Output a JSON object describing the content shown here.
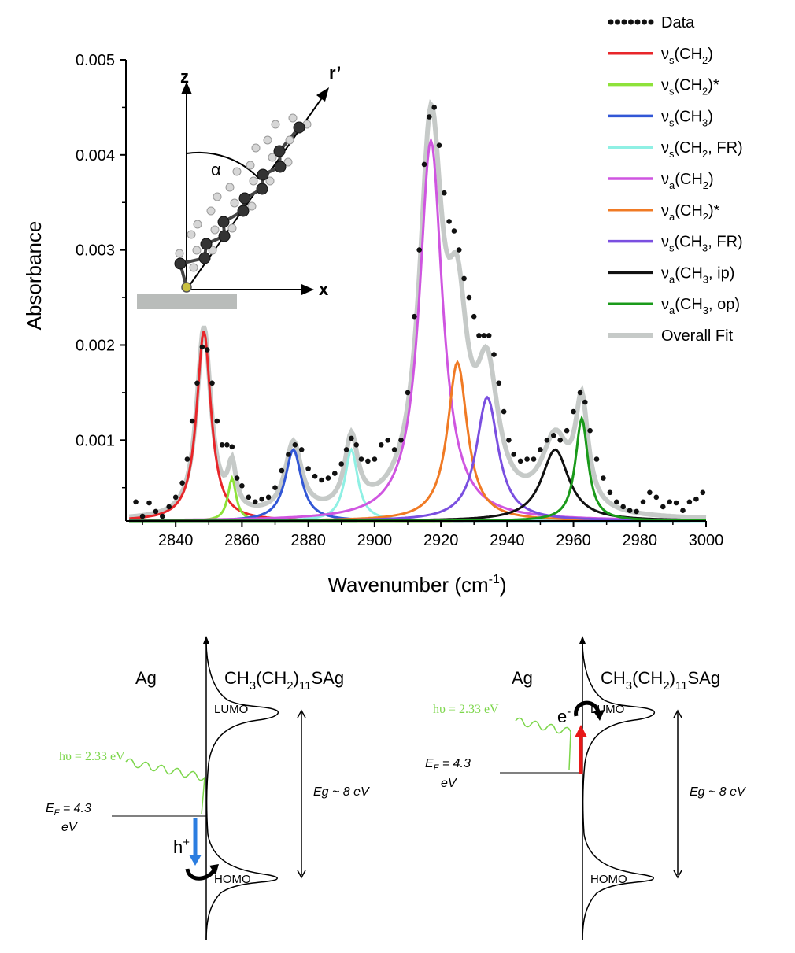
{
  "chart_data": {
    "type": "line",
    "xlabel": "Wavenumber (cm",
    "xlabel_sup": "-1",
    "xlabel_close": ")",
    "ylabel": "Absorbance",
    "xlim": [
      2825,
      3000
    ],
    "ylim": [
      0.00015,
      0.005
    ],
    "x_ticks": [
      2840,
      2860,
      2880,
      2900,
      2920,
      2940,
      2960,
      2980,
      3000
    ],
    "x_tick_labels": [
      "2840",
      "2860",
      "2880",
      "2900",
      "2920",
      "2940",
      "2960",
      "2980",
      "3000"
    ],
    "y_ticks": [
      0.001,
      0.002,
      0.003,
      0.004,
      0.005
    ],
    "y_tick_labels": [
      "0.001",
      "0.002",
      "0.003",
      "0.004",
      "0.005"
    ],
    "baseline": 0.00015,
    "legend_position": "top-right",
    "series": [
      {
        "name": "Data",
        "style": "dotted",
        "color": "#111111"
      },
      {
        "name": "νs(CH2)",
        "color": "#e8262a",
        "center": 2848.5,
        "height": 0.002,
        "hwhm": 2.6
      },
      {
        "name": "νs(CH2)*",
        "color": "#8ee23a",
        "center": 2857,
        "height": 0.00045,
        "hwhm": 1.5
      },
      {
        "name": "νs(CH3)",
        "color": "#3257d6",
        "center": 2875.5,
        "height": 0.00075,
        "hwhm": 3.0
      },
      {
        "name": "νs(CH2, FR)",
        "color": "#8ff0e4",
        "center": 2893,
        "height": 0.00075,
        "hwhm": 2.4
      },
      {
        "name": "νa(CH2)",
        "color": "#cf55e0",
        "center": 2917,
        "height": 0.004,
        "hwhm": 4.2
      },
      {
        "name": "νa(CH2)*",
        "color": "#f07a24",
        "center": 2925,
        "height": 0.00167,
        "hwhm": 3.6
      },
      {
        "name": "νs(CH3, FR)",
        "color": "#7a4fe0",
        "center": 2934,
        "height": 0.0013,
        "hwhm": 4.0
      },
      {
        "name": "νa(CH3, ip)",
        "color": "#111111",
        "center": 2954.5,
        "height": 0.00075,
        "hwhm": 5.0
      },
      {
        "name": "νa(CH3, op)",
        "color": "#1a9a1a",
        "center": 2962.5,
        "height": 0.00108,
        "hwhm": 2.3
      },
      {
        "name": "Overall Fit",
        "color": "#c6cac8"
      }
    ],
    "data_points": [
      [
        2828,
        0.00035
      ],
      [
        2830,
        0.0002
      ],
      [
        2832,
        0.00034
      ],
      [
        2834,
        0.00025
      ],
      [
        2836,
        0.0002
      ],
      [
        2838,
        0.0003
      ],
      [
        2840,
        0.0004
      ],
      [
        2842,
        0.00055
      ],
      [
        2843.5,
        0.0008
      ],
      [
        2845,
        0.0012
      ],
      [
        2846.5,
        0.0016
      ],
      [
        2848,
        0.00198
      ],
      [
        2849.5,
        0.00195
      ],
      [
        2851,
        0.0016
      ],
      [
        2852.5,
        0.0012
      ],
      [
        2854,
        0.00095
      ],
      [
        2855.5,
        0.00095
      ],
      [
        2857,
        0.00093
      ],
      [
        2858.5,
        0.0006
      ],
      [
        2860,
        0.00052
      ],
      [
        2862,
        0.0004
      ],
      [
        2864,
        0.00035
      ],
      [
        2866,
        0.00038
      ],
      [
        2868,
        0.0004
      ],
      [
        2870,
        0.0005
      ],
      [
        2872,
        0.00068
      ],
      [
        2874,
        0.00085
      ],
      [
        2876,
        0.00095
      ],
      [
        2878,
        0.0009
      ],
      [
        2880,
        0.0007
      ],
      [
        2882,
        0.00062
      ],
      [
        2884,
        0.00058
      ],
      [
        2886,
        0.0006
      ],
      [
        2888,
        0.00065
      ],
      [
        2890,
        0.00075
      ],
      [
        2891.5,
        0.0009
      ],
      [
        2893,
        0.00102
      ],
      [
        2894.5,
        0.00095
      ],
      [
        2896,
        0.0008
      ],
      [
        2898,
        0.00078
      ],
      [
        2900,
        0.0008
      ],
      [
        2902,
        0.00095
      ],
      [
        2904,
        0.001
      ],
      [
        2906,
        0.0009
      ],
      [
        2908,
        0.001
      ],
      [
        2910,
        0.0015
      ],
      [
        2912,
        0.0023
      ],
      [
        2913.5,
        0.003
      ],
      [
        2915,
        0.0039
      ],
      [
        2916.5,
        0.0044
      ],
      [
        2918,
        0.0045
      ],
      [
        2919.5,
        0.0041
      ],
      [
        2921,
        0.0036
      ],
      [
        2922.5,
        0.0033
      ],
      [
        2924,
        0.0032
      ],
      [
        2925.5,
        0.003
      ],
      [
        2927,
        0.0027
      ],
      [
        2928.5,
        0.0025
      ],
      [
        2930,
        0.0023
      ],
      [
        2931.5,
        0.0021
      ],
      [
        2933,
        0.0021
      ],
      [
        2934.5,
        0.0021
      ],
      [
        2936,
        0.0019
      ],
      [
        2937.5,
        0.0016
      ],
      [
        2939,
        0.0013
      ],
      [
        2940.5,
        0.001
      ],
      [
        2942,
        0.00085
      ],
      [
        2944,
        0.00078
      ],
      [
        2946,
        0.0008
      ],
      [
        2948,
        0.0008
      ],
      [
        2950,
        0.0009
      ],
      [
        2952,
        0.001
      ],
      [
        2954,
        0.00105
      ],
      [
        2956,
        0.001
      ],
      [
        2958,
        0.0011
      ],
      [
        2960,
        0.0013
      ],
      [
        2962,
        0.0015
      ],
      [
        2963.5,
        0.0014
      ],
      [
        2965,
        0.0011
      ],
      [
        2967,
        0.0008
      ],
      [
        2969,
        0.0006
      ],
      [
        2971,
        0.00045
      ],
      [
        2973,
        0.00035
      ],
      [
        2975,
        0.0003
      ],
      [
        2977,
        0.00026
      ],
      [
        2979,
        0.00025
      ],
      [
        2981,
        0.00035
      ],
      [
        2983,
        0.00045
      ],
      [
        2985,
        0.0004
      ],
      [
        2987,
        0.0003
      ],
      [
        2989,
        0.00035
      ],
      [
        2991,
        0.00034
      ],
      [
        2993,
        0.00026
      ],
      [
        2995,
        0.00035
      ],
      [
        2997,
        0.00038
      ],
      [
        2999,
        0.00045
      ]
    ]
  },
  "inset": {
    "z_label": "z",
    "x_label": "x",
    "r_label": "r’",
    "alpha_label": "α"
  },
  "diagrams": [
    {
      "metal": "Ag",
      "molecule_pre": "CH",
      "molecule_sub1": "3",
      "molecule_mid": "(CH",
      "molecule_sub2": "2",
      "molecule_mid2": ")",
      "molecule_sub3": "11",
      "molecule_post": "SAg",
      "lumo": "LUMO",
      "homo": "HOMO",
      "photon": "hυ = 2.33 eV",
      "ef_line1": "E",
      "ef_sub": "F",
      "ef_rest": " = 4.3",
      "ef_line2": "eV",
      "eg": "Eg ~ 8 eV",
      "carrier": "h",
      "carrier_sup": "+",
      "arrow_color": "#2b7de0"
    },
    {
      "metal": "Ag",
      "molecule_pre": "CH",
      "molecule_sub1": "3",
      "molecule_mid": "(CH",
      "molecule_sub2": "2",
      "molecule_mid2": ")",
      "molecule_sub3": "11",
      "molecule_post": "SAg",
      "lumo": "LUMO",
      "homo": "HOMO",
      "photon": "hυ = 2.33 eV",
      "ef_line1": "E",
      "ef_sub": "F",
      "ef_rest": " = 4.3",
      "ef_line2": "eV",
      "eg": "Eg ~ 8 eV",
      "carrier": "e",
      "carrier_sup": "-",
      "arrow_color": "#e81818"
    }
  ]
}
